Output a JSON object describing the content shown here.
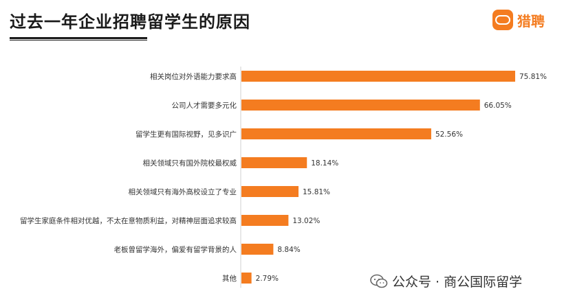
{
  "header": {
    "title": "过去一年企业招聘留学生的原因",
    "logo_text": "猎聘",
    "logo_mark_text": "猎聘"
  },
  "watermark": {
    "text": "公众号 · 商公国际留学"
  },
  "colors": {
    "bar": "#f47c20",
    "brand": "#f47c20"
  },
  "chart_data": {
    "type": "bar",
    "orientation": "horizontal",
    "title": "过去一年企业招聘留学生的原因",
    "categories": [
      "相关岗位对外语能力要求高",
      "公司人才需要多元化",
      "留学生更有国际视野，见多识广",
      "相关领域只有国外院校最权威",
      "相关领域只有海外高校设立了专业",
      "留学生家庭条件相对优越，不太在意物质利益，对精神层面追求较高",
      "老板曾留学海外，偏爱有留学背景的人",
      "其他"
    ],
    "values": [
      75.81,
      66.05,
      52.56,
      18.14,
      15.81,
      13.02,
      8.84,
      2.79
    ],
    "value_labels": [
      "75.81%",
      "66.05%",
      "52.56%",
      "18.14%",
      "15.81%",
      "13.02%",
      "8.84%",
      "2.79%"
    ],
    "xlim": [
      0,
      100
    ],
    "grid": false,
    "legend": "none"
  }
}
